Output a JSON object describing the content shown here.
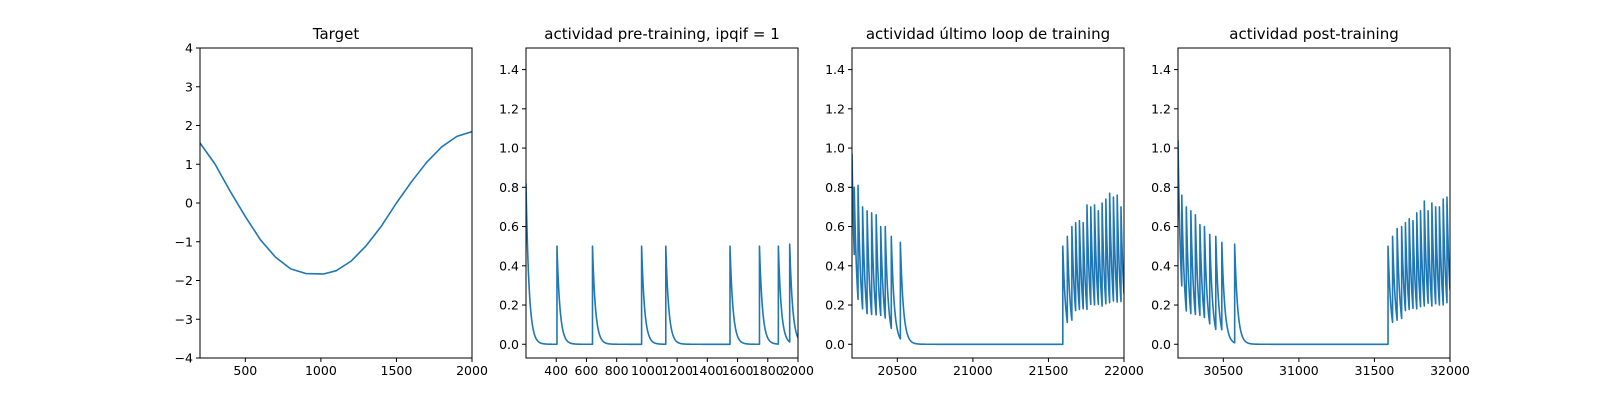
{
  "chart_data": [
    {
      "type": "line",
      "title": "Target",
      "xlabel": "",
      "ylabel": "",
      "xlim": [
        200,
        2000
      ],
      "ylim": [
        -4,
        4
      ],
      "xticks": [
        500,
        1000,
        1500,
        2000
      ],
      "yticks": [
        -4,
        -3,
        -2,
        -1,
        0,
        1,
        2,
        3,
        4
      ],
      "grid": false,
      "color": "#1f77b4",
      "series": [
        {
          "x": [
            200,
            300,
            400,
            500,
            600,
            700,
            800,
            900,
            1000,
            1020,
            1100,
            1200,
            1300,
            1400,
            1500,
            1600,
            1700,
            1800,
            1900,
            2000
          ],
          "y": [
            1.55,
            1.0,
            0.3,
            -0.35,
            -0.95,
            -1.4,
            -1.7,
            -1.82,
            -1.83,
            -1.83,
            -1.75,
            -1.5,
            -1.1,
            -0.6,
            0.0,
            0.55,
            1.05,
            1.45,
            1.72,
            1.84
          ]
        }
      ]
    },
    {
      "type": "line",
      "title": "actividad pre-training, ipqif = 1",
      "xlabel": "",
      "ylabel": "",
      "xlim": [
        200,
        2000
      ],
      "ylim": [
        -0.07,
        1.51
      ],
      "xticks": [
        400,
        600,
        800,
        1000,
        1200,
        1400,
        1600,
        1800,
        2000
      ],
      "yticks": [
        0.0,
        0.2,
        0.4,
        0.6,
        0.8,
        1.0,
        1.2,
        1.4
      ],
      "grid": false,
      "color": "#1f77b4",
      "start_value": 0.82,
      "spike_times": [
        405,
        640,
        965,
        1125,
        1550,
        1745,
        1870,
        1945
      ],
      "spike_peaks": [
        0.5,
        0.5,
        0.5,
        0.5,
        0.5,
        0.5,
        0.5,
        0.51
      ],
      "decay_tau": 20
    },
    {
      "type": "line",
      "title": "actividad último loop de training",
      "xlabel": "",
      "ylabel": "",
      "xlim": [
        20200,
        22000
      ],
      "ylim": [
        -0.07,
        1.51
      ],
      "xticks": [
        20500,
        21000,
        21500,
        22000
      ],
      "yticks": [
        0.0,
        0.2,
        0.4,
        0.6,
        0.8,
        1.0,
        1.2,
        1.4
      ],
      "grid": false,
      "color": "#1f77b4",
      "start_value": 0.97,
      "spike_times": [
        20215,
        20240,
        20270,
        20300,
        20330,
        20360,
        20390,
        20420,
        20460,
        20520,
        21595,
        21625,
        21655,
        21680,
        21705,
        21730,
        21755,
        21780,
        21805,
        21830,
        21855,
        21880,
        21905,
        21930,
        21955,
        21980
      ],
      "spike_peaks": [
        0.8,
        0.81,
        0.7,
        0.68,
        0.67,
        0.66,
        0.6,
        0.6,
        0.55,
        0.52,
        0.5,
        0.55,
        0.6,
        0.62,
        0.63,
        0.62,
        0.71,
        0.7,
        0.71,
        0.68,
        0.72,
        0.74,
        0.77,
        0.75,
        0.76,
        0.7
      ],
      "decay_tau": 20
    },
    {
      "type": "line",
      "title": "actividad post-training",
      "xlabel": "",
      "ylabel": "",
      "xlim": [
        30200,
        32000
      ],
      "ylim": [
        -0.07,
        1.51
      ],
      "xticks": [
        30500,
        31000,
        31500,
        32000
      ],
      "yticks": [
        0.0,
        0.2,
        0.4,
        0.6,
        0.8,
        1.0,
        1.2,
        1.4
      ],
      "grid": false,
      "color": "#1f77b4",
      "start_value": 1.04,
      "spike_times": [
        30225,
        30255,
        30285,
        30315,
        30345,
        30375,
        30410,
        30450,
        30490,
        30575,
        31590,
        31620,
        31650,
        31680,
        31705,
        31730,
        31755,
        31780,
        31805,
        31830,
        31855,
        31880,
        31905,
        31930,
        31955,
        31980
      ],
      "spike_peaks": [
        0.76,
        0.7,
        0.68,
        0.66,
        0.61,
        0.6,
        0.56,
        0.55,
        0.52,
        0.51,
        0.5,
        0.55,
        0.59,
        0.6,
        0.62,
        0.64,
        0.63,
        0.67,
        0.68,
        0.73,
        0.68,
        0.72,
        0.7,
        0.7,
        0.74,
        0.75
      ],
      "decay_tau": 20
    }
  ]
}
